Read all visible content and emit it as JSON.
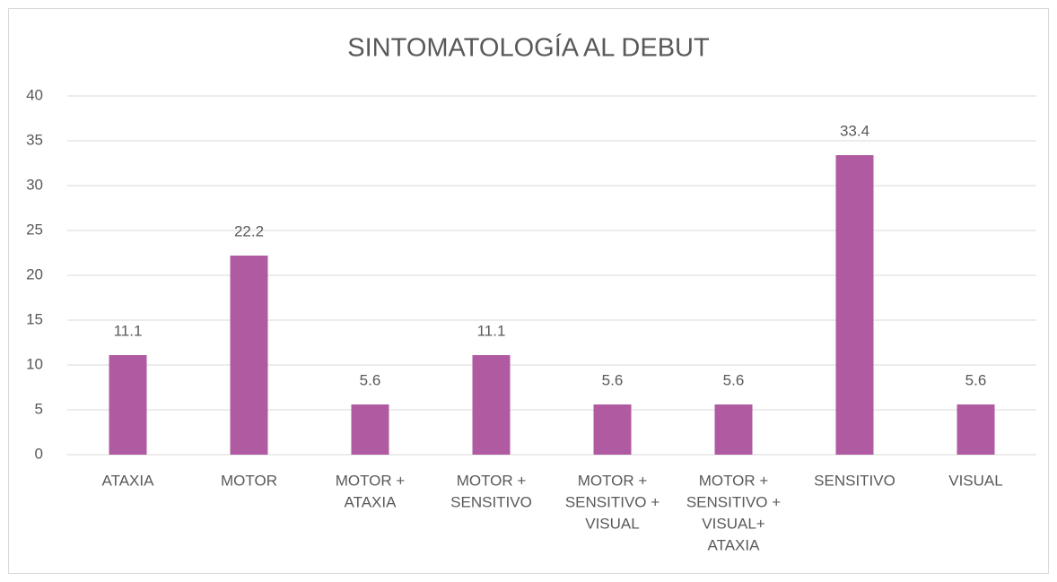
{
  "chart_data": {
    "type": "bar",
    "title": "SINTOMATOLOGÍA AL DEBUT",
    "categories": [
      [
        "ATAXIA"
      ],
      [
        "MOTOR"
      ],
      [
        "MOTOR +",
        "ATAXIA"
      ],
      [
        "MOTOR +",
        "SENSITIVO"
      ],
      [
        "MOTOR +",
        "SENSITIVO +",
        "VISUAL"
      ],
      [
        "MOTOR +",
        "SENSITIVO +",
        "VISUAL+",
        "ATAXIA"
      ],
      [
        "SENSITIVO"
      ],
      [
        "VISUAL"
      ]
    ],
    "values": [
      11.1,
      22.2,
      5.6,
      11.1,
      5.6,
      5.6,
      33.4,
      5.6
    ],
    "color": "#b05aa1",
    "ylim": [
      0,
      40
    ],
    "yticks": [
      0,
      5,
      10,
      15,
      20,
      25,
      30,
      35,
      40
    ],
    "grid": true
  }
}
